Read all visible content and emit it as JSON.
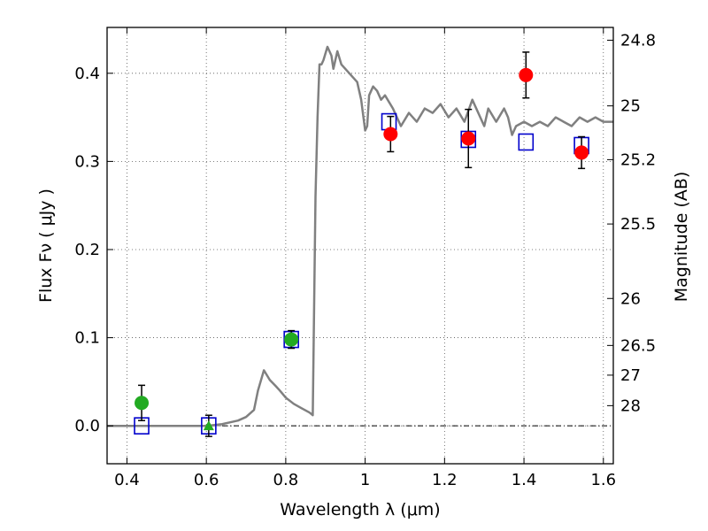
{
  "chart_data": {
    "type": "scatter",
    "xlabel": "Wavelength  λ (μm)",
    "ylabel": "Flux  Fν  ( μJy )",
    "ylabel_right": "Magnitude (AB)",
    "xlim": [
      0.35,
      1.625
    ],
    "ylim": [
      -0.043,
      0.452
    ],
    "grid": true,
    "colors": {
      "model": "#808080",
      "model_points": "#0000cc",
      "detections": "#ff0000",
      "optical": "#22aa22",
      "errorbar": "#000000"
    },
    "x_ticks": [
      0.4,
      0.6,
      0.8,
      1.0,
      1.2,
      1.4,
      1.6
    ],
    "x_tick_labels": [
      "0.4",
      "0.6",
      "0.8",
      "1",
      "1.2",
      "1.4",
      "1.6"
    ],
    "y_ticks": [
      0.0,
      0.1,
      0.2,
      0.3,
      0.4
    ],
    "y_tick_labels": [
      "0.0",
      "0.1",
      "0.2",
      "0.3",
      "0.4"
    ],
    "right_ticks": [
      {
        "label": "24.8",
        "flux": 0.4375
      },
      {
        "label": "25",
        "flux": 0.363
      },
      {
        "label": "25.2",
        "flux": 0.302
      },
      {
        "label": "25.5",
        "flux": 0.229
      },
      {
        "label": "26",
        "flux": 0.1445
      },
      {
        "label": "26.5",
        "flux": 0.0912
      },
      {
        "label": "27",
        "flux": 0.0575
      },
      {
        "label": "28",
        "flux": 0.0229
      }
    ],
    "model_spectrum": {
      "x": [
        0.35,
        0.6,
        0.64,
        0.66,
        0.68,
        0.7,
        0.72,
        0.73,
        0.745,
        0.76,
        0.775,
        0.785,
        0.8,
        0.82,
        0.84,
        0.86,
        0.868,
        0.875,
        0.88,
        0.885,
        0.89,
        0.895,
        0.905,
        0.915,
        0.92,
        0.93,
        0.94,
        0.96,
        0.98,
        0.99,
        1.0,
        1.005,
        1.01,
        1.02,
        1.03,
        1.04,
        1.05,
        1.07,
        1.09,
        1.11,
        1.13,
        1.15,
        1.17,
        1.19,
        1.21,
        1.23,
        1.25,
        1.27,
        1.29,
        1.3,
        1.31,
        1.33,
        1.35,
        1.36,
        1.37,
        1.38,
        1.4,
        1.42,
        1.44,
        1.46,
        1.48,
        1.5,
        1.52,
        1.54,
        1.56,
        1.58,
        1.6,
        1.625
      ],
      "y": [
        0.0,
        0.0,
        0.002,
        0.004,
        0.006,
        0.01,
        0.018,
        0.04,
        0.063,
        0.052,
        0.045,
        0.04,
        0.032,
        0.025,
        0.02,
        0.015,
        0.012,
        0.26,
        0.35,
        0.41,
        0.41,
        0.415,
        0.43,
        0.42,
        0.405,
        0.425,
        0.41,
        0.4,
        0.39,
        0.37,
        0.335,
        0.34,
        0.375,
        0.385,
        0.38,
        0.37,
        0.375,
        0.36,
        0.34,
        0.355,
        0.345,
        0.36,
        0.355,
        0.365,
        0.35,
        0.36,
        0.345,
        0.37,
        0.35,
        0.34,
        0.36,
        0.345,
        0.36,
        0.35,
        0.33,
        0.34,
        0.345,
        0.34,
        0.345,
        0.34,
        0.35,
        0.345,
        0.34,
        0.35,
        0.345,
        0.35,
        0.345,
        0.345
      ]
    },
    "model_points": {
      "name": "",
      "x": [
        0.437,
        0.606,
        0.814,
        1.06,
        1.26,
        1.405,
        1.545
      ],
      "y": [
        0.0,
        0.0,
        0.098,
        0.345,
        0.325,
        0.322,
        0.318
      ]
    },
    "measurements": [
      {
        "x": 0.437,
        "y": 0.026,
        "err": 0.02,
        "marker": "circle",
        "color": "optical"
      },
      {
        "x": 0.606,
        "y": 0.0,
        "err": 0.012,
        "marker": "triangle",
        "color": "optical"
      },
      {
        "x": 0.814,
        "y": 0.098,
        "err": 0.01,
        "marker": "circle",
        "color": "optical"
      },
      {
        "x": 1.064,
        "y": 0.331,
        "err": 0.02,
        "marker": "circle",
        "color": "detections"
      },
      {
        "x": 1.26,
        "y": 0.326,
        "err": 0.033,
        "marker": "circle",
        "color": "detections"
      },
      {
        "x": 1.405,
        "y": 0.398,
        "err": 0.026,
        "marker": "circle",
        "color": "detections"
      },
      {
        "x": 1.545,
        "y": 0.31,
        "err": 0.018,
        "marker": "circle",
        "color": "detections"
      }
    ]
  }
}
